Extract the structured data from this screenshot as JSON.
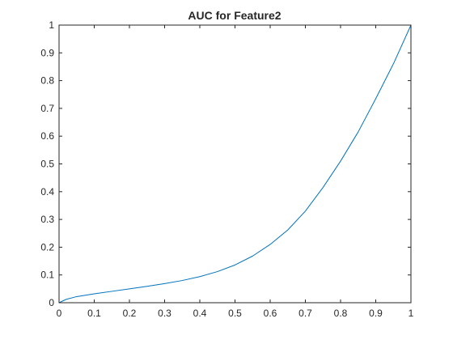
{
  "chart_data": {
    "type": "line",
    "title": "AUC for Feature2",
    "xlabel": "",
    "ylabel": "",
    "xlim": [
      0,
      1
    ],
    "ylim": [
      0,
      1
    ],
    "xticks": [
      "0",
      "0.1",
      "0.2",
      "0.3",
      "0.4",
      "0.5",
      "0.6",
      "0.7",
      "0.8",
      "0.9",
      "1"
    ],
    "yticks": [
      "0",
      "0.1",
      "0.2",
      "0.3",
      "0.4",
      "0.5",
      "0.6",
      "0.7",
      "0.8",
      "0.9",
      "1"
    ],
    "grid": false,
    "box": true,
    "series": [
      {
        "color": "#0072bd",
        "x": [
          0,
          0.02,
          0.05,
          0.1,
          0.15,
          0.2,
          0.25,
          0.3,
          0.35,
          0.4,
          0.45,
          0.5,
          0.55,
          0.6,
          0.65,
          0.7,
          0.75,
          0.8,
          0.85,
          0.9,
          0.95,
          1.0
        ],
        "y": [
          0,
          0.012,
          0.022,
          0.032,
          0.041,
          0.05,
          0.059,
          0.069,
          0.08,
          0.094,
          0.112,
          0.136,
          0.168,
          0.21,
          0.262,
          0.33,
          0.415,
          0.51,
          0.615,
          0.735,
          0.86,
          1.0
        ]
      }
    ]
  }
}
